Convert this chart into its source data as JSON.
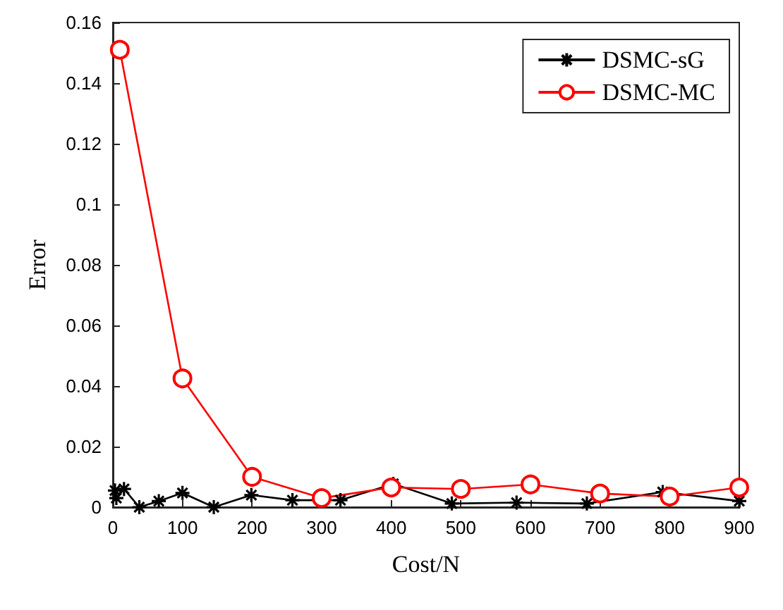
{
  "chart_data": {
    "type": "line",
    "xlabel": "Cost/N",
    "ylabel": "Error",
    "xlim": [
      0,
      900
    ],
    "xticks": [
      0,
      100,
      200,
      300,
      400,
      500,
      600,
      700,
      800,
      900
    ],
    "ylim": [
      0,
      0.16
    ],
    "yticks": [
      0,
      0.02,
      0.04,
      0.06,
      0.08,
      0.1,
      0.12,
      0.14,
      0.16
    ],
    "grid": false,
    "legend": "top right",
    "series": [
      {
        "name": "DSMC-sG",
        "color": "#000000",
        "marker": "cross",
        "x": [
          3,
          5,
          16,
          38,
          66,
          100,
          145,
          199,
          258,
          327,
          403,
          487,
          580,
          681,
          790,
          900
        ],
        "values": [
          0.0055,
          0.003,
          0.006,
          0,
          0.002,
          0.0047,
          0,
          0.004,
          0.0023,
          0.0023,
          0.0077,
          0.0012,
          0.0015,
          0.0012,
          0.005,
          0.002
        ]
      },
      {
        "name": "DSMC-MC",
        "color": "#ff0000",
        "marker": "circle",
        "x": [
          10,
          100,
          200,
          300,
          400,
          500,
          600,
          700,
          800,
          900
        ],
        "values": [
          0.151,
          0.0425,
          0.01,
          0.003,
          0.0065,
          0.006,
          0.0075,
          0.0045,
          0.0035,
          0.0065
        ]
      }
    ]
  }
}
